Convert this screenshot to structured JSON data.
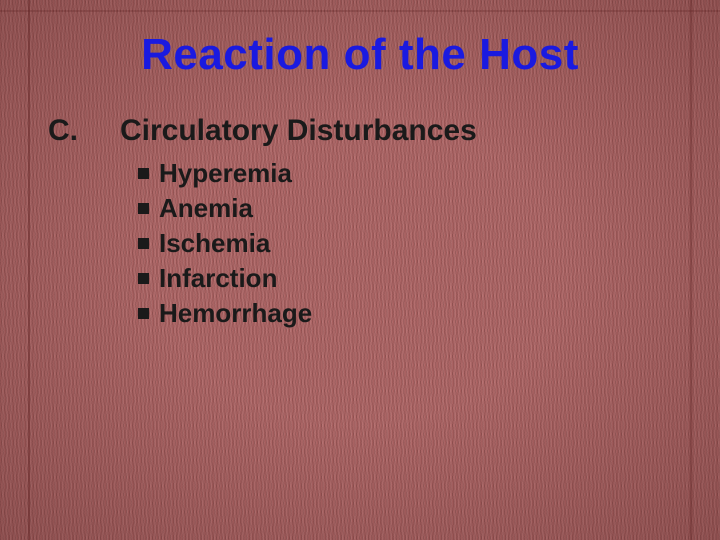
{
  "slide": {
    "title": "Reaction of the Host",
    "title_color": "#1a1ae0",
    "section_letter": "C.",
    "section_heading": "Circulatory Disturbances",
    "text_color": "#1a1a1a",
    "bullet_color": "#1a1a1a",
    "bullets": [
      "Hyperemia",
      "Anemia",
      "Ischemia",
      "Infarction",
      "Hemorrhage"
    ],
    "background_color": "#b06868",
    "title_fontsize": 44,
    "heading_fontsize": 30,
    "bullet_fontsize": 26
  }
}
